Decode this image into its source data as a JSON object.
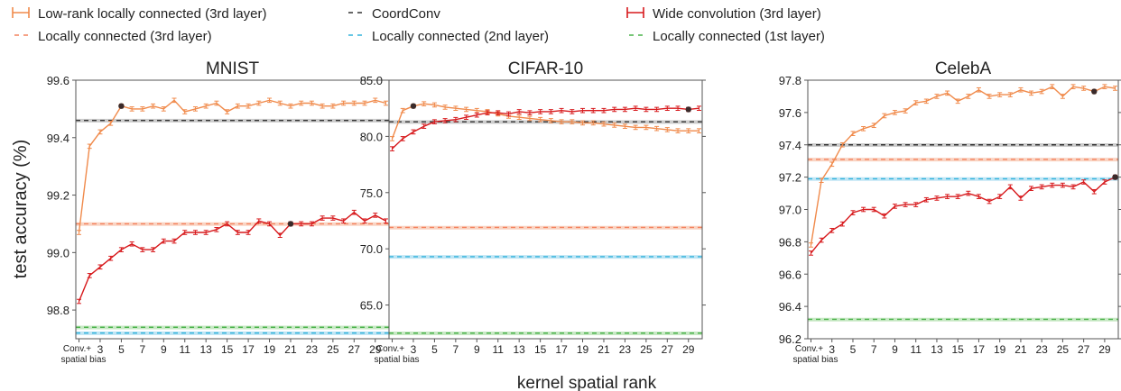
{
  "legend": [
    {
      "label": "Low-rank locally connected (3rd layer)",
      "color": "#f08a4b",
      "style": "errorbar"
    },
    {
      "label": "CoordConv",
      "color": "#333333",
      "style": "dashed"
    },
    {
      "label": "Wide convolution (3rd layer)",
      "color": "#d7191c",
      "style": "errorbar"
    },
    {
      "label": "Locally connected (3rd layer)",
      "color": "#f4835f",
      "style": "dashed"
    },
    {
      "label": "Locally connected (2nd layer)",
      "color": "#34b4dc",
      "style": "dashed"
    },
    {
      "label": "Locally connected (1st layer)",
      "color": "#4cb34c",
      "style": "dashed"
    }
  ],
  "ylabel": "test accuracy (%)",
  "xlabel": "kernel spatial rank",
  "x_first_tick": [
    "Conv.+",
    "spatial bias"
  ],
  "chart_data": [
    {
      "type": "line",
      "title": "MNIST",
      "ylim": [
        98.7,
        99.6
      ],
      "yticks": [
        "98.8",
        "99.0",
        "99.2",
        "99.4",
        "99.6"
      ],
      "ytick_values": [
        98.8,
        99.0,
        99.2,
        99.4,
        99.6
      ],
      "xticks": [
        3,
        5,
        7,
        9,
        11,
        13,
        15,
        17,
        19,
        21,
        23,
        25,
        27,
        29
      ],
      "xlim": [
        0.7,
        30.3
      ],
      "series": [
        {
          "name": "Low-rank locally connected (3rd layer)",
          "color": "#f08a4b",
          "x": [
            1,
            2,
            3,
            4,
            5,
            6,
            7,
            8,
            9,
            10,
            11,
            12,
            13,
            14,
            15,
            16,
            17,
            18,
            19,
            20,
            21,
            22,
            23,
            24,
            25,
            26,
            27,
            28,
            29,
            30
          ],
          "values": [
            99.07,
            99.37,
            99.42,
            99.45,
            99.51,
            99.5,
            99.5,
            99.51,
            99.5,
            99.53,
            99.49,
            99.5,
            99.51,
            99.52,
            99.49,
            99.51,
            99.51,
            99.52,
            99.53,
            99.52,
            99.51,
            99.52,
            99.52,
            99.51,
            99.51,
            99.52,
            99.52,
            99.52,
            99.53,
            99.52
          ],
          "best_x": 5
        },
        {
          "name": "Wide convolution (3rd layer)",
          "color": "#d7191c",
          "x": [
            1,
            2,
            3,
            4,
            5,
            6,
            7,
            8,
            9,
            10,
            11,
            12,
            13,
            14,
            15,
            16,
            17,
            18,
            19,
            20,
            21,
            22,
            23,
            24,
            25,
            26,
            27,
            28,
            29,
            30
          ],
          "values": [
            98.83,
            98.92,
            98.95,
            98.98,
            99.01,
            99.03,
            99.01,
            99.01,
            99.04,
            99.04,
            99.07,
            99.07,
            99.07,
            99.08,
            99.1,
            99.07,
            99.07,
            99.11,
            99.1,
            99.06,
            99.1,
            99.1,
            99.1,
            99.12,
            99.12,
            99.11,
            99.14,
            99.11,
            99.13,
            99.11
          ],
          "best_x": 21
        }
      ],
      "baselines": [
        {
          "name": "CoordConv",
          "value": 99.46,
          "color": "#333333",
          "band": "#bbbbbb"
        },
        {
          "name": "Locally connected (3rd layer)",
          "value": 99.1,
          "color": "#f4835f",
          "band": "#f7c4ae"
        },
        {
          "name": "Locally connected (1st layer)",
          "value": 98.74,
          "color": "#4cb34c",
          "band": "#b4e0b0"
        },
        {
          "name": "Locally connected (2nd layer)",
          "value": 98.72,
          "color": "#34b4dc",
          "band": "#aadcf0"
        }
      ]
    },
    {
      "type": "line",
      "title": "CIFAR-10",
      "ylim": [
        62.0,
        85.0
      ],
      "yticks": [
        "65.0",
        "70.0",
        "75.0",
        "80.0",
        "85.0"
      ],
      "ytick_values": [
        65.0,
        70.0,
        75.0,
        80.0,
        85.0
      ],
      "xticks": [
        3,
        5,
        7,
        9,
        11,
        13,
        15,
        17,
        19,
        21,
        23,
        25,
        27,
        29
      ],
      "xlim": [
        0.7,
        30.3
      ],
      "series": [
        {
          "name": "Low-rank locally connected (3rd layer)",
          "color": "#f08a4b",
          "x": [
            1,
            2,
            3,
            4,
            5,
            6,
            7,
            8,
            9,
            10,
            11,
            12,
            13,
            14,
            15,
            16,
            17,
            18,
            19,
            20,
            21,
            22,
            23,
            24,
            25,
            26,
            27,
            28,
            29,
            30
          ],
          "values": [
            79.8,
            82.3,
            82.7,
            82.9,
            82.8,
            82.6,
            82.5,
            82.4,
            82.3,
            82.2,
            82.0,
            81.8,
            81.7,
            81.6,
            81.5,
            81.4,
            81.3,
            81.3,
            81.2,
            81.2,
            81.1,
            81.0,
            80.9,
            80.8,
            80.8,
            80.7,
            80.6,
            80.5,
            80.5,
            80.5
          ],
          "best_x": 3
        },
        {
          "name": "Wide convolution (3rd layer)",
          "color": "#d7191c",
          "x": [
            1,
            2,
            3,
            4,
            5,
            6,
            7,
            8,
            9,
            10,
            11,
            12,
            13,
            14,
            15,
            16,
            17,
            18,
            19,
            20,
            21,
            22,
            23,
            24,
            25,
            26,
            27,
            28,
            29,
            30
          ],
          "values": [
            78.9,
            79.8,
            80.4,
            80.9,
            81.3,
            81.4,
            81.5,
            81.7,
            81.9,
            82.1,
            82.1,
            82.0,
            82.2,
            82.1,
            82.2,
            82.2,
            82.3,
            82.2,
            82.3,
            82.3,
            82.3,
            82.4,
            82.4,
            82.5,
            82.4,
            82.4,
            82.5,
            82.5,
            82.4,
            82.5
          ],
          "best_x": 29
        }
      ],
      "baselines": [
        {
          "name": "CoordConv",
          "value": 81.3,
          "color": "#333333",
          "band": "#bbbbbb"
        },
        {
          "name": "Locally connected (3rd layer)",
          "value": 71.9,
          "color": "#f4835f",
          "band": "#f7c4ae"
        },
        {
          "name": "Locally connected (2nd layer)",
          "value": 69.3,
          "color": "#34b4dc",
          "band": "#aadcf0"
        },
        {
          "name": "Locally connected (1st layer)",
          "value": 62.5,
          "color": "#4cb34c",
          "band": "#b4e0b0"
        }
      ]
    },
    {
      "type": "line",
      "title": "CelebA",
      "ylim": [
        96.2,
        97.8
      ],
      "yticks": [
        "96.2",
        "96.4",
        "96.6",
        "96.8",
        "97.0",
        "97.2",
        "97.4",
        "97.6",
        "97.8"
      ],
      "ytick_values": [
        96.2,
        96.4,
        96.6,
        96.8,
        97.0,
        97.2,
        97.4,
        97.6,
        97.8
      ],
      "xticks": [
        3,
        5,
        7,
        9,
        11,
        13,
        15,
        17,
        19,
        21,
        23,
        25,
        27,
        29
      ],
      "xlim": [
        0.7,
        30.3
      ],
      "series": [
        {
          "name": "Low-rank locally connected (3rd layer)",
          "color": "#f08a4b",
          "x": [
            1,
            2,
            3,
            4,
            5,
            6,
            7,
            8,
            9,
            10,
            11,
            12,
            13,
            14,
            15,
            16,
            17,
            18,
            19,
            20,
            21,
            22,
            23,
            24,
            25,
            26,
            27,
            28,
            29,
            30
          ],
          "values": [
            96.78,
            97.18,
            97.28,
            97.4,
            97.47,
            97.5,
            97.52,
            97.58,
            97.6,
            97.61,
            97.66,
            97.67,
            97.7,
            97.72,
            97.67,
            97.7,
            97.74,
            97.7,
            97.71,
            97.71,
            97.74,
            97.72,
            97.73,
            97.76,
            97.7,
            97.76,
            97.75,
            97.73,
            97.76,
            97.75
          ],
          "best_x": 28
        },
        {
          "name": "Wide convolution (3rd layer)",
          "color": "#d7191c",
          "x": [
            1,
            2,
            3,
            4,
            5,
            6,
            7,
            8,
            9,
            10,
            11,
            12,
            13,
            14,
            15,
            16,
            17,
            18,
            19,
            20,
            21,
            22,
            23,
            24,
            25,
            26,
            27,
            28,
            29,
            30
          ],
          "values": [
            96.73,
            96.81,
            96.87,
            96.91,
            96.98,
            97.0,
            97.0,
            96.96,
            97.02,
            97.03,
            97.03,
            97.06,
            97.07,
            97.08,
            97.08,
            97.1,
            97.08,
            97.05,
            97.08,
            97.14,
            97.07,
            97.13,
            97.14,
            97.15,
            97.15,
            97.14,
            97.17,
            97.11,
            97.17,
            97.2
          ],
          "best_x": 30
        }
      ],
      "baselines": [
        {
          "name": "CoordConv",
          "value": 97.4,
          "color": "#333333",
          "band": "#bbbbbb"
        },
        {
          "name": "Locally connected (3rd layer)",
          "value": 97.31,
          "color": "#f4835f",
          "band": "#f7c4ae"
        },
        {
          "name": "Locally connected (2nd layer)",
          "value": 97.19,
          "color": "#34b4dc",
          "band": "#aadcf0"
        },
        {
          "name": "Locally connected (1st layer)",
          "value": 96.32,
          "color": "#4cb34c",
          "band": "#b4e0b0"
        }
      ]
    }
  ]
}
